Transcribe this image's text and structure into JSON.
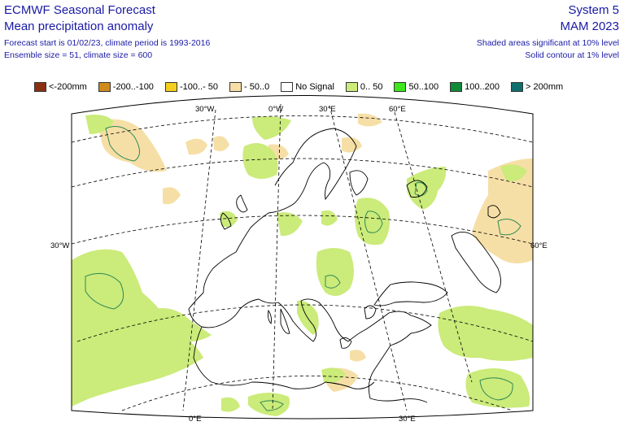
{
  "header": {
    "title": "ECMWF Seasonal Forecast",
    "subtitle": "Mean precipitation anomaly",
    "forecast_info": "Forecast start is 01/02/23, climate period is 1993-2016",
    "ensemble_info": "Ensemble size = 51, climate size = 600",
    "system": "System 5",
    "season": "MAM 2023",
    "significance_shaded": "Shaded areas significant at 10% level",
    "significance_contour": "Solid contour at 1% level"
  },
  "legend": [
    {
      "label": "<-200mm",
      "color": "#8b2f12"
    },
    {
      "label": "-200..-100",
      "color": "#d08a1a"
    },
    {
      "label": "-100..- 50",
      "color": "#f5cf1f"
    },
    {
      "label": "- 50..0",
      "color": "#f6dfa6"
    },
    {
      "label": "No Signal",
      "color": "#ffffff"
    },
    {
      "label": "0.. 50",
      "color": "#cbeb7a"
    },
    {
      "label": "50..100",
      "color": "#3ee61b"
    },
    {
      "label": "100..200",
      "color": "#118a3a"
    },
    {
      "label": "> 200mm",
      "color": "#0e6f6c"
    }
  ],
  "map_labels": {
    "lon_30w_top": "30°W",
    "lon_0w_top": "0°W",
    "lon_30e_top": "30°E",
    "lon_60e_top": "60°E",
    "lat_30w_left": "30°W",
    "lat_60e_right": "60°E",
    "lon_0e_bottom": "0°E",
    "lon_30e_bottom": "30°E"
  },
  "colors": {
    "positive_small": "#cbeb7a",
    "negative_small": "#f6dfa6",
    "contour": "#2f8a55",
    "coast": "#000000",
    "text": "#1a1aa6"
  }
}
